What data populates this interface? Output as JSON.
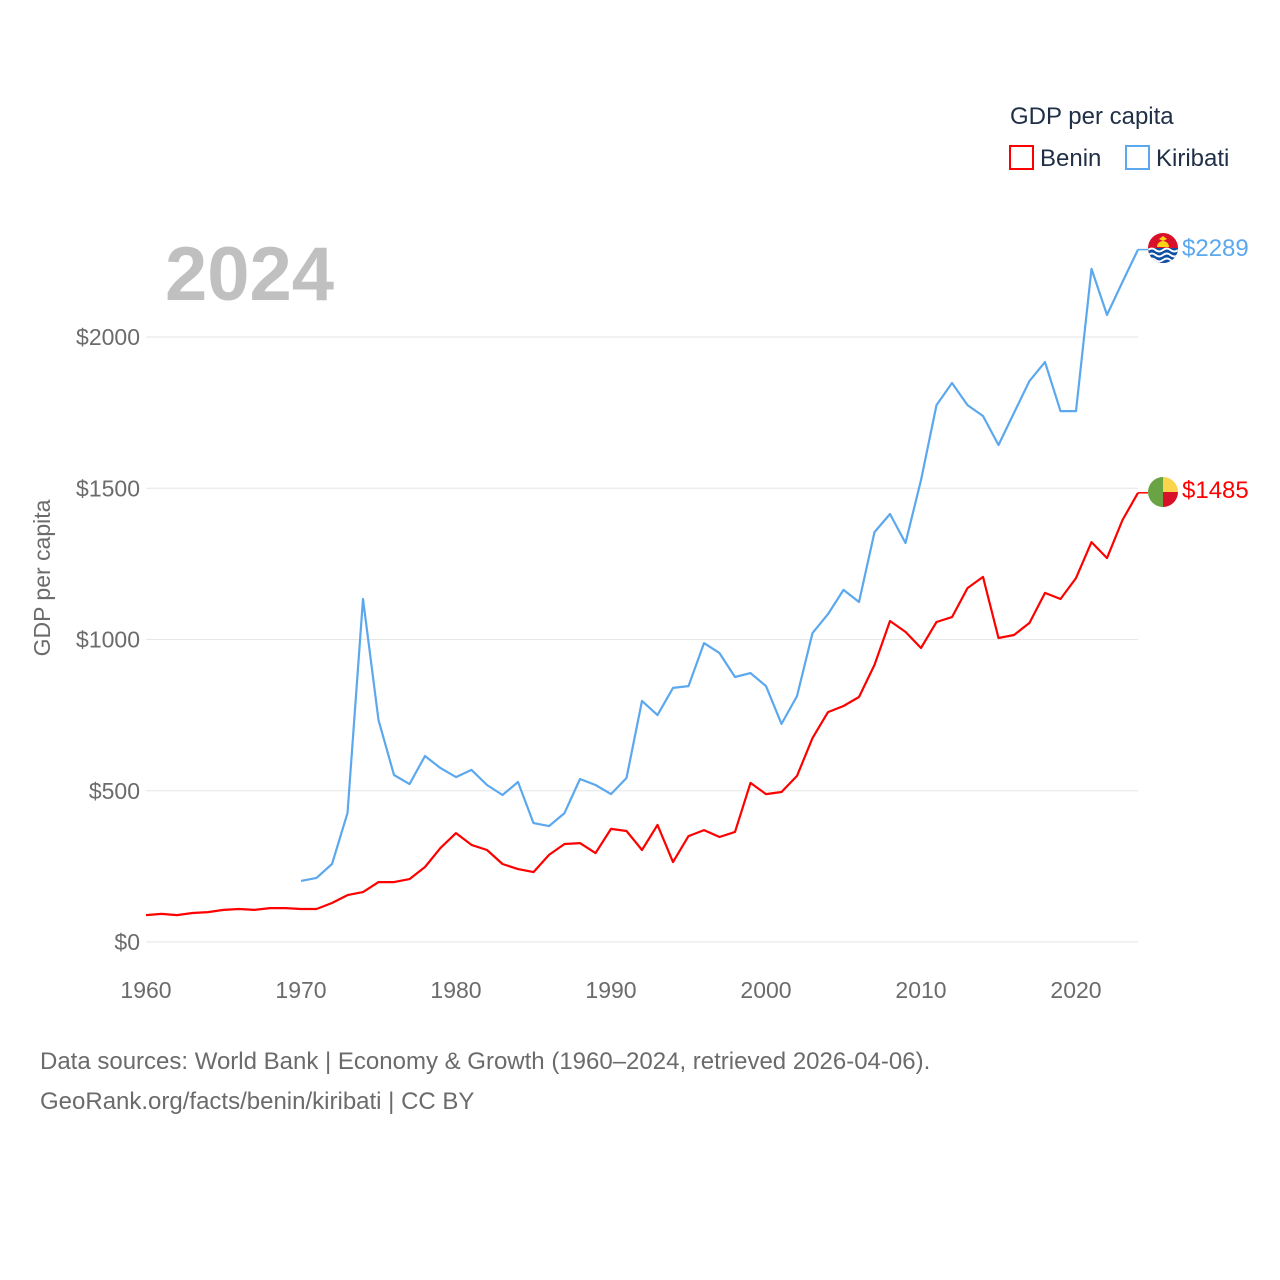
{
  "chart_data": {
    "type": "line",
    "ylabel": "GDP per capita",
    "xlabel": "",
    "year_label": "2024",
    "legend": {
      "title": "GDP per capita",
      "placement": "top-right"
    },
    "xlim": [
      1960,
      2024
    ],
    "ylim": [
      0,
      2000
    ],
    "x_ticks": [
      1960,
      1970,
      1980,
      1990,
      2000,
      2010,
      2020
    ],
    "y_ticks": [
      0,
      500,
      1000,
      1500,
      2000
    ],
    "y_tick_labels": [
      "$0",
      "$500",
      "$1000",
      "$1500",
      "$2000"
    ],
    "grid": true,
    "series": [
      {
        "name": "Benin",
        "color": "#ff0000",
        "start_year": 1960,
        "end_label": "$1485",
        "flag": "benin-flag",
        "values": [
          89,
          93,
          89,
          96,
          99,
          106,
          109,
          106,
          112,
          112,
          109,
          109,
          129,
          155,
          165,
          198,
          198,
          208,
          248,
          311,
          360,
          321,
          304,
          258,
          241,
          231,
          288,
          324,
          327,
          294,
          374,
          367,
          304,
          387,
          264,
          350,
          370,
          347,
          364,
          526,
          489,
          496,
          549,
          674,
          760,
          780,
          810,
          916,
          1061,
          1025,
          972,
          1058,
          1074,
          1170,
          1207,
          1005,
          1015,
          1055,
          1154,
          1134,
          1203,
          1322,
          1269,
          1395,
          1485
        ]
      },
      {
        "name": "Kiribati",
        "color": "#5ba8ee",
        "start_year": 1970,
        "end_label": "$2289",
        "flag": "kiribati-flag",
        "values": [
          202,
          212,
          258,
          426,
          1134,
          734,
          552,
          522,
          615,
          575,
          545,
          569,
          519,
          486,
          529,
          393,
          383,
          426,
          539,
          519,
          489,
          542,
          797,
          750,
          840,
          846,
          988,
          955,
          876,
          889,
          846,
          721,
          813,
          1021,
          1084,
          1164,
          1124,
          1355,
          1415,
          1319,
          1527,
          1775,
          1848,
          1775,
          1739,
          1643,
          1749,
          1855,
          1917,
          1755,
          1755,
          2225,
          2073,
          2182,
          2289
        ]
      }
    ]
  },
  "footer": {
    "line1": "Data sources: World Bank | Economy & Growth (1960–2024, retrieved 2026-04-06).",
    "line2": "GeoRank.org/facts/benin/kiribati | CC BY"
  }
}
